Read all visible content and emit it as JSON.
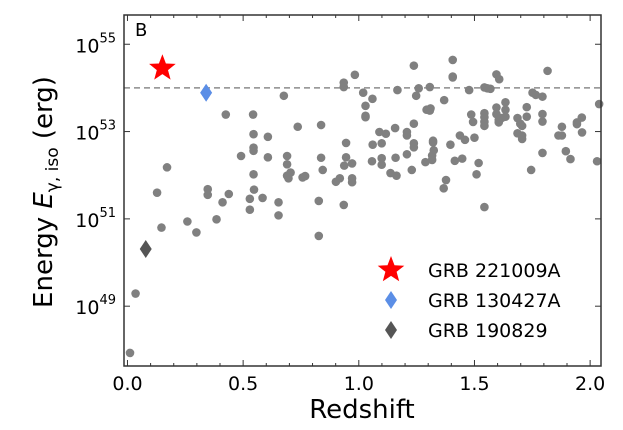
{
  "chart_data": {
    "type": "scatter",
    "panel_label": "B",
    "xlabel": "Redshift",
    "ylabel": {
      "prefix": "Energy ",
      "symbol": "E",
      "subscript": "γ, iso",
      "suffix": " (erg)"
    },
    "y_scale": "log10",
    "xlim": [
      -0.015,
      2.047
    ],
    "ylim_log10": [
      47.63,
      55.67
    ],
    "x_ticks": [
      {
        "value": 0.0,
        "label": "0.0"
      },
      {
        "value": 0.5,
        "label": "0.5"
      },
      {
        "value": 1.0,
        "label": "1.0"
      },
      {
        "value": 1.5,
        "label": "1.5"
      },
      {
        "value": 2.0,
        "label": "2.0"
      }
    ],
    "y_ticks": [
      {
        "value": 49,
        "base": "10",
        "exp": "49"
      },
      {
        "value": 51,
        "base": "10",
        "exp": "51"
      },
      {
        "value": 53,
        "base": "10",
        "exp": "53"
      },
      {
        "value": 55,
        "base": "10",
        "exp": "55"
      }
    ],
    "reference_line_log10": 54.0,
    "colors": {
      "grb": "#808080",
      "ref_line": "#8c8c8c",
      "GRB 221009A": "#ff0000",
      "GRB 130427A": "#5b8ee6",
      "GRB 190829": "#555555"
    },
    "series": [
      {
        "name": "GRBs",
        "marker": "circle",
        "points": [
          [
            0.011,
            47.93
          ],
          [
            0.035,
            49.29
          ],
          [
            0.147,
            50.8
          ],
          [
            0.128,
            51.6
          ],
          [
            0.171,
            52.18
          ],
          [
            0.259,
            50.94
          ],
          [
            0.298,
            50.69
          ],
          [
            0.347,
            51.68
          ],
          [
            0.347,
            51.55
          ],
          [
            0.385,
            50.99
          ],
          [
            0.411,
            51.38
          ],
          [
            0.438,
            51.57
          ],
          [
            0.425,
            53.39
          ],
          [
            0.491,
            52.44
          ],
          [
            0.529,
            51.46
          ],
          [
            0.529,
            51.21
          ],
          [
            0.543,
            53.39
          ],
          [
            0.545,
            52.94
          ],
          [
            0.545,
            52.63
          ],
          [
            0.545,
            52.56
          ],
          [
            0.545,
            52.02
          ],
          [
            0.547,
            51.67
          ],
          [
            0.584,
            51.48
          ],
          [
            0.607,
            52.88
          ],
          [
            0.607,
            52.41
          ],
          [
            0.653,
            51.38
          ],
          [
            0.653,
            51.08
          ],
          [
            0.676,
            53.82
          ],
          [
            0.69,
            52.44
          ],
          [
            0.69,
            52.25
          ],
          [
            0.69,
            51.99
          ],
          [
            0.696,
            51.93
          ],
          [
            0.705,
            52.06
          ],
          [
            0.736,
            53.11
          ],
          [
            0.757,
            51.95
          ],
          [
            0.768,
            51.98
          ],
          [
            0.827,
            51.41
          ],
          [
            0.827,
            50.61
          ],
          [
            0.837,
            53.15
          ],
          [
            0.837,
            52.4
          ],
          [
            0.844,
            52.12
          ],
          [
            0.901,
            51.85
          ],
          [
            0.918,
            51.93
          ],
          [
            0.935,
            51.32
          ],
          [
            0.935,
            54.12
          ],
          [
            0.935,
            54.02
          ],
          [
            0.945,
            52.74
          ],
          [
            0.945,
            52.41
          ],
          [
            0.937,
            52.22
          ],
          [
            0.971,
            52.27
          ],
          [
            0.971,
            51.93
          ],
          [
            0.971,
            51.84
          ],
          [
            0.983,
            54.3
          ],
          [
            1.019,
            53.89
          ],
          [
            1.029,
            53.59
          ],
          [
            1.029,
            53.36
          ],
          [
            1.029,
            53.33
          ],
          [
            1.167,
            53.95
          ],
          [
            1.059,
            53.75
          ],
          [
            1.089,
            52.99
          ],
          [
            1.117,
            52.95
          ],
          [
            1.157,
            53.08
          ],
          [
            1.06,
            52.7
          ],
          [
            1.099,
            52.73
          ],
          [
            1.057,
            52.32
          ],
          [
            1.099,
            52.39
          ],
          [
            1.099,
            52.24
          ],
          [
            1.137,
            52.05
          ],
          [
            1.163,
            51.99
          ],
          [
            1.159,
            52.4
          ],
          [
            1.208,
            52.99
          ],
          [
            1.208,
            52.91
          ],
          [
            1.208,
            52.48
          ],
          [
            1.229,
            52.12
          ],
          [
            1.238,
            53.18
          ],
          [
            1.238,
            52.73
          ],
          [
            1.238,
            52.64
          ],
          [
            1.238,
            54.51
          ],
          [
            1.248,
            53.82
          ],
          [
            1.259,
            53.99
          ],
          [
            1.288,
            52.3
          ],
          [
            1.293,
            53.5
          ],
          [
            1.307,
            53.48
          ],
          [
            1.31,
            53.53
          ],
          [
            1.307,
            54.02
          ],
          [
            1.321,
            52.79
          ],
          [
            1.321,
            52.75
          ],
          [
            1.324,
            52.57
          ],
          [
            1.317,
            52.45
          ],
          [
            1.317,
            52.35
          ],
          [
            1.369,
            53.72
          ],
          [
            1.367,
            51.7
          ],
          [
            1.377,
            51.89
          ],
          [
            1.396,
            52.7
          ],
          [
            1.406,
            54.64
          ],
          [
            1.406,
            54.26
          ],
          [
            1.406,
            54.24
          ],
          [
            1.415,
            52.33
          ],
          [
            1.447,
            52.38
          ],
          [
            1.437,
            52.91
          ],
          [
            1.459,
            52.81
          ],
          [
            1.477,
            53.95
          ],
          [
            1.486,
            53.39
          ],
          [
            1.494,
            53.22
          ],
          [
            1.5,
            52.86
          ],
          [
            1.518,
            52.28
          ],
          [
            1.509,
            52.02
          ],
          [
            1.543,
            51.27
          ],
          [
            1.543,
            54.01
          ],
          [
            1.556,
            53.99
          ],
          [
            1.569,
            53.98
          ],
          [
            1.543,
            53.42
          ],
          [
            1.543,
            53.33
          ],
          [
            1.543,
            53.22
          ],
          [
            1.543,
            53.13
          ],
          [
            1.595,
            54.31
          ],
          [
            1.607,
            54.2
          ],
          [
            1.595,
            53.55
          ],
          [
            1.595,
            53.4
          ],
          [
            1.605,
            53.27
          ],
          [
            1.605,
            53.21
          ],
          [
            1.617,
            53.31
          ],
          [
            1.634,
            53.5
          ],
          [
            1.634,
            53.67
          ],
          [
            1.634,
            53.34
          ],
          [
            1.686,
            53.31
          ],
          [
            1.698,
            53.18
          ],
          [
            1.706,
            53.13
          ],
          [
            1.686,
            52.96
          ],
          [
            1.706,
            52.91
          ],
          [
            1.706,
            52.83
          ],
          [
            1.726,
            53.56
          ],
          [
            1.726,
            53.34
          ],
          [
            1.745,
            52.12
          ],
          [
            1.751,
            53.89
          ],
          [
            1.765,
            53.84
          ],
          [
            1.794,
            53.8
          ],
          [
            1.794,
            53.4
          ],
          [
            1.794,
            53.23
          ],
          [
            1.794,
            52.51
          ],
          [
            1.816,
            54.39
          ],
          [
            1.863,
            52.91
          ],
          [
            1.878,
            52.91
          ],
          [
            1.878,
            53.11
          ],
          [
            1.895,
            52.55
          ],
          [
            1.915,
            52.37
          ],
          [
            1.943,
            53.21
          ],
          [
            1.964,
            53.32
          ],
          [
            1.965,
            52.98
          ],
          [
            1.943,
            53.17
          ],
          [
            2.039,
            53.63
          ],
          [
            2.03,
            52.32
          ]
        ]
      },
      {
        "name": "GRB 221009A",
        "marker": "star",
        "points": [
          [
            0.151,
            54.45
          ]
        ]
      },
      {
        "name": "GRB 130427A",
        "marker": "diamond",
        "points": [
          [
            0.34,
            53.89
          ]
        ]
      },
      {
        "name": "GRB 190829",
        "marker": "diamond",
        "points": [
          [
            0.079,
            50.31
          ]
        ]
      }
    ],
    "legend": {
      "placement": "lower-right",
      "entries": [
        "GRB 221009A",
        "GRB 130427A",
        "GRB 190829"
      ]
    }
  }
}
